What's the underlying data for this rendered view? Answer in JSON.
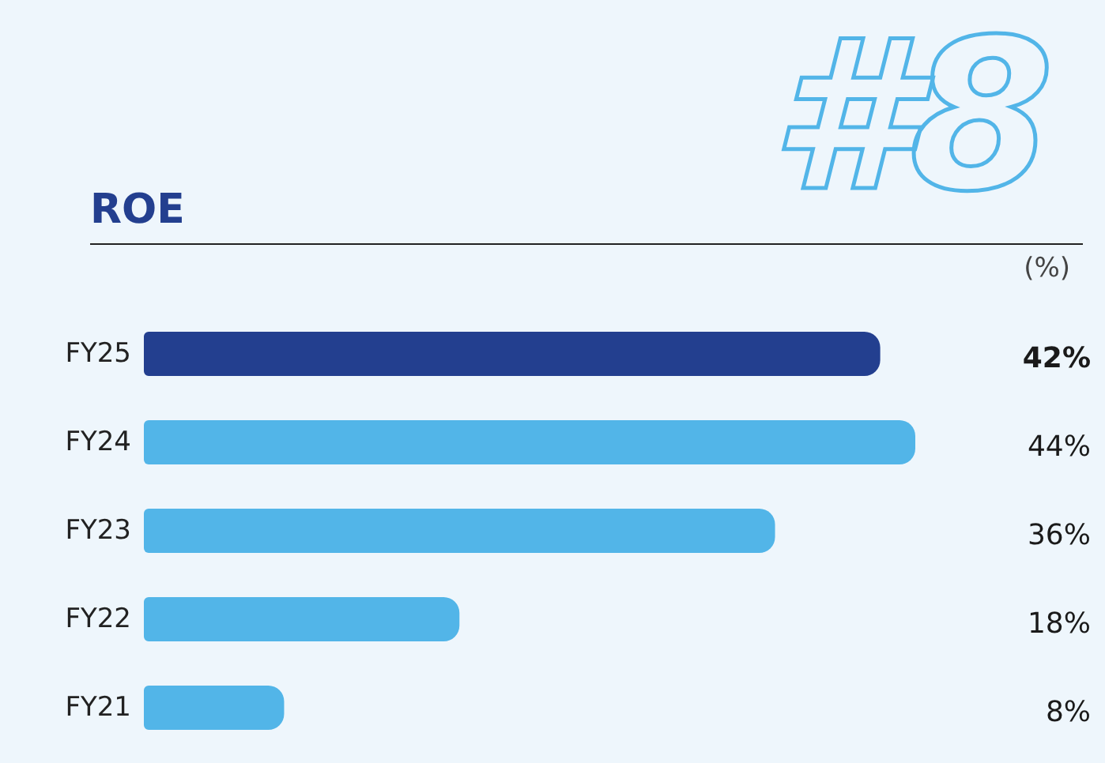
{
  "chart_data": {
    "type": "bar",
    "orientation": "horizontal",
    "title": "ROE",
    "annotations": [
      "#8",
      "(%)"
    ],
    "categories": [
      "FY25",
      "FY24",
      "FY23",
      "FY22",
      "FY21"
    ],
    "values": [
      42,
      44,
      36,
      18,
      8
    ],
    "colors": [
      "#233f8f",
      "#52b5e8",
      "#52b5e8",
      "#52b5e8",
      "#52b5e8"
    ],
    "value_labels": [
      "42%",
      "44%",
      "36%",
      "18%",
      "8%"
    ]
  }
}
